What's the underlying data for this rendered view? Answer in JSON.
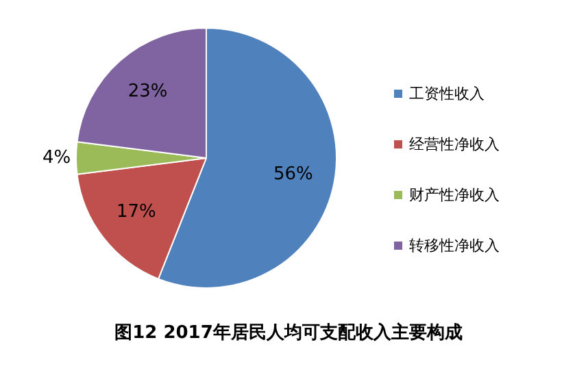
{
  "chart_data": {
    "type": "pie",
    "title": "图12   2017年居民人均可支配收入主要构成",
    "categories": [
      "工资性收入",
      "经营性净收入",
      "财产性净收入",
      "转移性净收入"
    ],
    "values": [
      56,
      17,
      4,
      23
    ],
    "colors": [
      "#4f81bd",
      "#c0504d",
      "#9bbb59",
      "#8064a2"
    ],
    "value_labels": [
      "56%",
      "17%",
      "4%",
      "23%"
    ],
    "legend": "right"
  }
}
